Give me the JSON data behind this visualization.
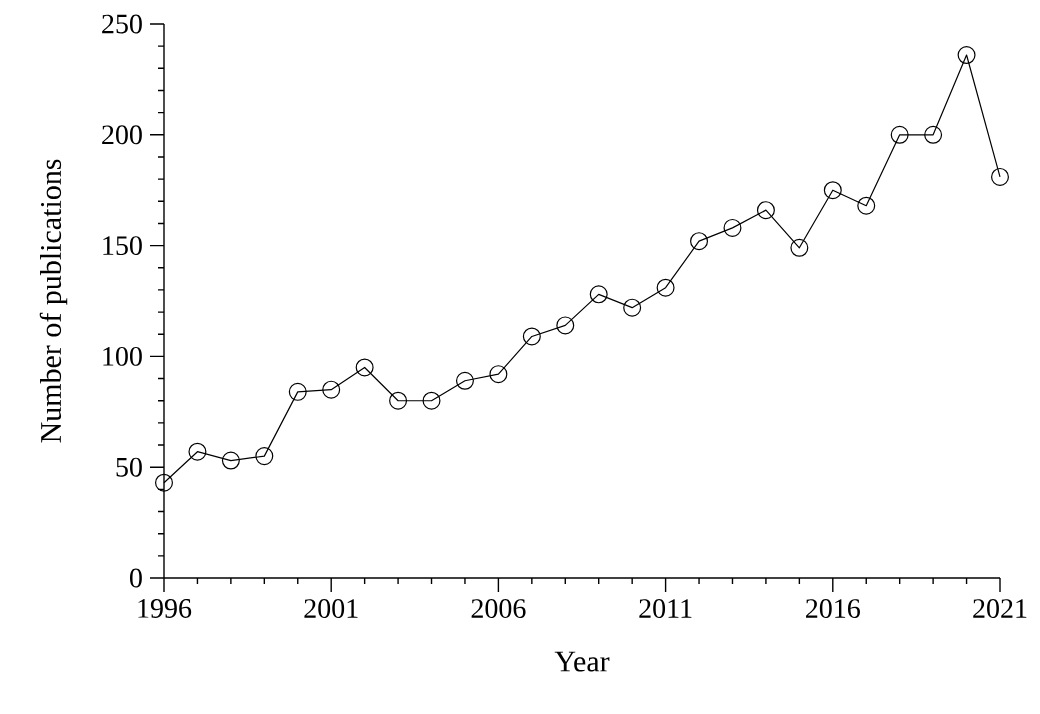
{
  "chart_data": {
    "type": "line",
    "xlabel": "Year",
    "ylabel": "Number of publications",
    "marker": "circle",
    "line_style": "solid",
    "grid": false,
    "x": [
      1996,
      1997,
      1998,
      1999,
      2000,
      2001,
      2002,
      2003,
      2004,
      2005,
      2006,
      2007,
      2008,
      2009,
      2010,
      2011,
      2012,
      2013,
      2014,
      2015,
      2016,
      2017,
      2018,
      2019,
      2020,
      2021
    ],
    "series": [
      {
        "color": "#000000",
        "values": [
          43,
          57,
          53,
          55,
          84,
          85,
          95,
          80,
          80,
          89,
          92,
          109,
          114,
          128,
          122,
          131,
          152,
          158,
          166,
          149,
          175,
          168,
          200,
          200,
          236,
          181
        ]
      }
    ],
    "xlim": [
      1996,
      2021
    ],
    "ylim": [
      0,
      250
    ],
    "xticks": [
      1996,
      {
        "value": 1997,
        "label": null
      },
      {
        "value": 1998,
        "label": null
      },
      {
        "value": 1999,
        "label": null
      },
      {
        "value": 2000,
        "label": null
      },
      2001,
      {
        "value": 2002,
        "label": null
      },
      {
        "value": 2003,
        "label": null
      },
      {
        "value": 2004,
        "label": null
      },
      {
        "value": 2005,
        "label": null
      },
      2006,
      {
        "value": 2007,
        "label": null
      },
      {
        "value": 2008,
        "label": null
      },
      {
        "value": 2009,
        "label": null
      },
      {
        "value": 2010,
        "label": null
      },
      2011,
      {
        "value": 2012,
        "label": null
      },
      {
        "value": 2013,
        "label": null
      },
      {
        "value": 2014,
        "label": null
      },
      {
        "value": 2015,
        "label": null
      },
      2016,
      {
        "value": 2017,
        "label": null
      },
      {
        "value": 2018,
        "label": null
      },
      {
        "value": 2019,
        "label": null
      },
      {
        "value": 2020,
        "label": null
      },
      2021
    ],
    "yticks": [
      0,
      {
        "value": 10,
        "label": null
      },
      {
        "value": 20,
        "label": null
      },
      {
        "value": 30,
        "label": null
      },
      {
        "value": 40,
        "label": null
      },
      50,
      {
        "value": 60,
        "label": null
      },
      {
        "value": 70,
        "label": null
      },
      {
        "value": 80,
        "label": null
      },
      {
        "value": 90,
        "label": null
      },
      100,
      {
        "value": 110,
        "label": null
      },
      {
        "value": 120,
        "label": null
      },
      {
        "value": 130,
        "label": null
      },
      {
        "value": 140,
        "label": null
      },
      150,
      {
        "value": 160,
        "label": null
      },
      {
        "value": 170,
        "label": null
      },
      {
        "value": 180,
        "label": null
      },
      {
        "value": 190,
        "label": null
      },
      200,
      {
        "value": 210,
        "label": null
      },
      {
        "value": 220,
        "label": null
      },
      {
        "value": 230,
        "label": null
      },
      {
        "value": 240,
        "label": null
      },
      250
    ]
  }
}
